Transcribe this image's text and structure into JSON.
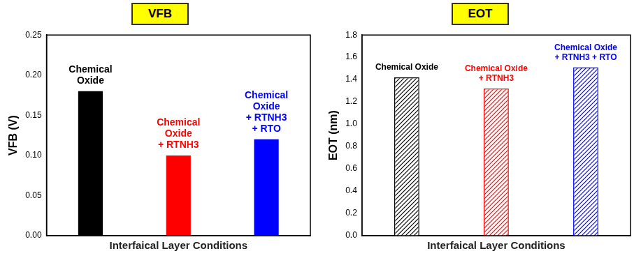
{
  "chart_data": [
    {
      "type": "bar",
      "title": "VFB",
      "categories": [
        "Chemical Oxide",
        "Chemical Oxide + RTNH3",
        "Chemical Oxide + RTNH3 + RTO"
      ],
      "values": [
        0.18,
        0.1,
        0.12
      ],
      "colors": [
        "#000000",
        "#ff0000",
        "#0000ff"
      ],
      "ylim": [
        0,
        0.25
      ],
      "yticks": [
        {
          "value": 0,
          "label": "0.00"
        },
        {
          "value": 0.05,
          "label": "0.05"
        },
        {
          "value": 0.1,
          "label": "0.10"
        },
        {
          "value": 0.15,
          "label": "0.15"
        },
        {
          "value": 0.2,
          "label": "0.20"
        },
        {
          "value": 0.25,
          "label": "0.25"
        }
      ],
      "y_label": "VFB (V)",
      "x_label": "Interfaical Layer Conditions",
      "grid": false,
      "tick_labels": "y"
    },
    {
      "type": "bar",
      "title": "EOT",
      "categories": [
        "Chemical Oxide",
        "Chemical Oxide + RTNH3",
        "Chemical Oxide + RTNH3 + RTO"
      ],
      "values": [
        1.42,
        1.32,
        1.51
      ],
      "colors": [
        "#000000",
        "#ff0000",
        "#0000ff"
      ],
      "ylim": [
        0,
        1.8
      ],
      "yticks": [
        {
          "value": 0,
          "label": "0.0"
        },
        {
          "value": 0.2,
          "label": "0.2"
        },
        {
          "value": 0.4,
          "label": "0.4"
        },
        {
          "value": 0.6,
          "label": "0.6"
        },
        {
          "value": 0.8,
          "label": "0.8"
        },
        {
          "value": 1,
          "label": "1.0"
        },
        {
          "value": 1.2,
          "label": "1.2"
        },
        {
          "value": 1.4,
          "label": "1.4"
        },
        {
          "value": 1.6,
          "label": "1.6"
        },
        {
          "value": 1.8,
          "label": "1.8"
        }
      ],
      "y_label": "EOT (nm)",
      "x_label": "Interfaical Layer Conditions",
      "grid": false,
      "tick_labels": "y"
    }
  ]
}
